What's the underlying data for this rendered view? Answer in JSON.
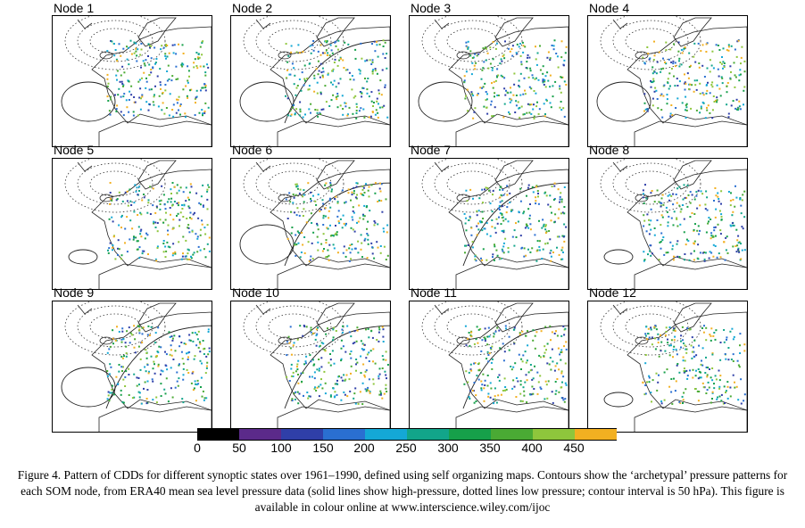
{
  "figure": {
    "panels": [
      {
        "title": "Node 1",
        "contours": "ring"
      },
      {
        "title": "Node 2",
        "contours": "mixed"
      },
      {
        "title": "Node 3",
        "contours": "ring"
      },
      {
        "title": "Node 4",
        "contours": "ring"
      },
      {
        "title": "Node 5",
        "contours": "oval"
      },
      {
        "title": "Node 6",
        "contours": "mixed"
      },
      {
        "title": "Node 7",
        "contours": "arc"
      },
      {
        "title": "Node 8",
        "contours": "oval"
      },
      {
        "title": "Node 9",
        "contours": "mixed"
      },
      {
        "title": "Node 10",
        "contours": "arc"
      },
      {
        "title": "Node 11",
        "contours": "arc"
      },
      {
        "title": "Node 12",
        "contours": "oval"
      }
    ],
    "colorbar": {
      "labels": [
        "0",
        "50",
        "100",
        "150",
        "200",
        "250",
        "300",
        "350",
        "400",
        "450"
      ],
      "colors": [
        "#000000",
        "#5b2a8a",
        "#2f3fa8",
        "#2a6fd1",
        "#14a8d6",
        "#12a58a",
        "#16a04a",
        "#4aaa34",
        "#8ec63c",
        "#f2b021"
      ],
      "arrow_color": "#ee4a2c"
    },
    "caption": "Figure 4. Pattern of CDDs for different synoptic states over 1961–1990, defined using self organizing maps. Contours show the ‘archetypal’ pressure patterns for each SOM node, from ERA40 mean sea level pressure data (solid lines show high-pressure, dotted lines low pressure; contour interval is 50 hPa). This figure is available in colour online at www.interscience.wiley.com/ijoc"
  }
}
